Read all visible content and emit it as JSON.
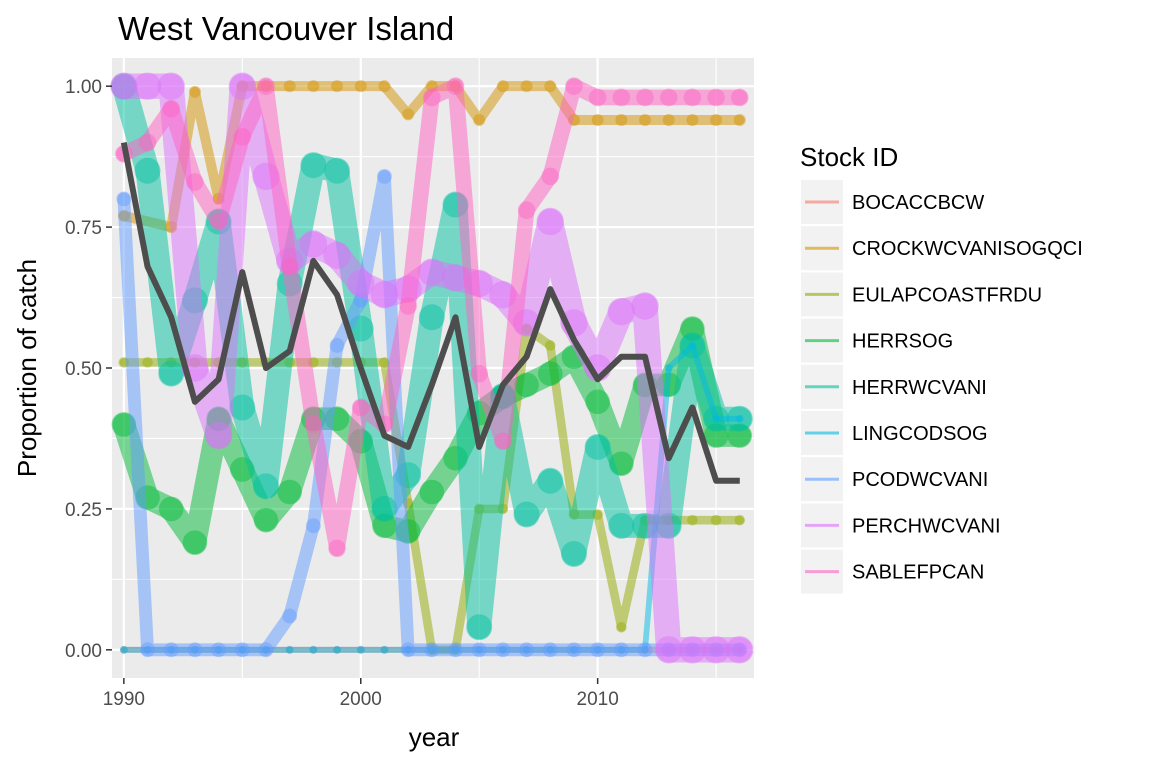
{
  "chart_data": {
    "type": "line",
    "title": "West Vancouver Island",
    "xlabel": "year",
    "ylabel": "Proportion of catch",
    "xlim": [
      1989.5,
      2016.6
    ],
    "ylim": [
      -0.05,
      1.05
    ],
    "xticks": [
      1990,
      2000,
      2010
    ],
    "yticks": [
      0,
      0.25,
      0.5,
      0.75,
      1
    ],
    "ytick_labels": [
      "0.00",
      "0.25",
      "0.50",
      "0.75",
      "1.00"
    ],
    "grid": true,
    "legend_title": "Stock ID",
    "legend_position": "right",
    "x": [
      1990,
      1991,
      1992,
      1993,
      1994,
      1995,
      1996,
      1997,
      1998,
      1999,
      2000,
      2001,
      2002,
      2003,
      2004,
      2005,
      2006,
      2007,
      2008,
      2009,
      2010,
      2011,
      2012,
      2013,
      2014,
      2015,
      2016
    ],
    "series": [
      {
        "name": "BOCACCBCW",
        "color": "#F8766D",
        "weight": 0.1,
        "values": [
          0,
          0,
          0,
          0,
          0,
          0,
          0,
          0,
          0,
          0,
          0,
          0,
          0,
          0,
          0,
          0,
          0,
          0,
          0,
          0,
          0,
          0,
          0,
          0,
          0,
          0,
          0
        ]
      },
      {
        "name": "CROCKWCVANISOGQCI",
        "color": "#D39200",
        "weight": 0.25,
        "values": [
          0.77,
          null,
          0.75,
          0.99,
          0.8,
          1.0,
          1.0,
          1.0,
          1.0,
          1.0,
          1.0,
          1.0,
          0.95,
          1.0,
          1.0,
          0.94,
          1.0,
          1.0,
          1.0,
          0.94,
          0.94,
          0.94,
          0.94,
          0.94,
          0.94,
          0.94,
          0.94
        ]
      },
      {
        "name": "EULAPCOASTFRDU",
        "color": "#93AA00",
        "weight": 0.2,
        "values": [
          0.51,
          0.51,
          0.51,
          0.51,
          0.51,
          0.51,
          0.51,
          0.51,
          0.51,
          0.51,
          0.51,
          0.51,
          0.26,
          0,
          0,
          0.25,
          0.25,
          0.57,
          0.54,
          0.24,
          0.24,
          0.04,
          0.23,
          0.23,
          0.23,
          0.23,
          0.23
        ]
      },
      {
        "name": "HERRSOG",
        "color": "#00BA38",
        "weight": 0.7,
        "values": [
          0.4,
          0.27,
          0.25,
          0.19,
          0.41,
          0.32,
          0.23,
          0.28,
          0.41,
          0.41,
          0.37,
          0.22,
          0.21,
          0.28,
          0.34,
          0.42,
          0.45,
          0.47,
          0.49,
          0.52,
          0.44,
          0.33,
          0.47,
          0.47,
          0.57,
          0.38,
          0.38
        ]
      },
      {
        "name": "HERRWCVANI",
        "color": "#00C19F",
        "weight": 0.75,
        "values": [
          1.0,
          0.85,
          0.49,
          0.62,
          0.76,
          0.43,
          0.29,
          0.65,
          0.86,
          0.85,
          0.57,
          0.25,
          0.31,
          0.59,
          0.79,
          0.04,
          0.45,
          0.24,
          0.3,
          0.17,
          0.36,
          0.22,
          0.22,
          0.22,
          0.54,
          0.41,
          0.41
        ]
      },
      {
        "name": "LINGCODSOG",
        "color": "#00B9E3",
        "weight": 0.1,
        "values": [
          0,
          0,
          0,
          0,
          0,
          0,
          0,
          0,
          0,
          0,
          0,
          0,
          0,
          0,
          0,
          0,
          0,
          0,
          0,
          0,
          0,
          0,
          0,
          0.5,
          0.54,
          0.41,
          0.41
        ]
      },
      {
        "name": "PCODWCVANI",
        "color": "#619CFF",
        "weight": 0.35,
        "values": [
          0.8,
          0,
          0,
          0,
          0,
          0,
          0,
          0.06,
          0.22,
          0.54,
          0.62,
          0.84,
          0,
          0,
          0,
          0,
          0,
          0,
          0,
          0,
          0,
          0,
          0,
          0,
          0,
          0,
          0
        ]
      },
      {
        "name": "PERCHWCVANI",
        "color": "#DB72FB",
        "weight": 0.8,
        "values": [
          1.0,
          1.0,
          1.0,
          0.5,
          0.38,
          1.0,
          0.84,
          0.69,
          0.72,
          0.7,
          0.65,
          0.63,
          0.64,
          0.67,
          0.66,
          0.65,
          0.63,
          0.58,
          0.76,
          0.58,
          0.5,
          0.6,
          0.61,
          0,
          0,
          0,
          0
        ]
      },
      {
        "name": "SABLEFPCAN",
        "color": "#FF61C3",
        "weight": 0.45,
        "values": [
          0.88,
          0.9,
          0.96,
          0.83,
          0.76,
          0.91,
          1.0,
          0.68,
          0.4,
          0.18,
          0.43,
          0.4,
          0.61,
          0.98,
          1.0,
          0.49,
          0.37,
          0.78,
          0.84,
          1.0,
          0.98,
          0.98,
          0.98,
          0.98,
          0.98,
          0.98,
          0.98
        ]
      },
      {
        "name": "",
        "color": "#4D4D4D",
        "weight": 0,
        "values": [
          0.9,
          0.68,
          0.59,
          0.44,
          0.48,
          0.67,
          0.5,
          0.53,
          0.69,
          0.63,
          0.5,
          0.38,
          0.36,
          0.47,
          0.59,
          0.36,
          0.47,
          0.52,
          0.64,
          0.55,
          0.48,
          0.52,
          0.52,
          0.34,
          0.43,
          0.3,
          0.3
        ]
      }
    ]
  }
}
